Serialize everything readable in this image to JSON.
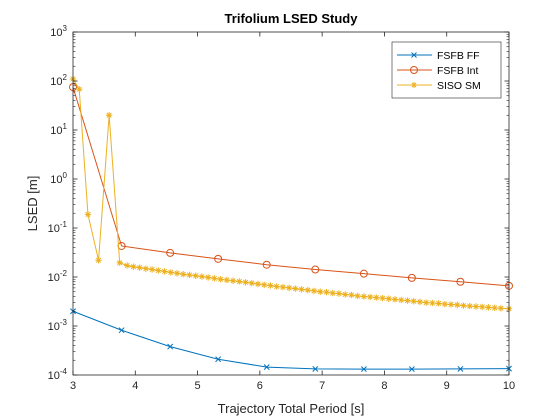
{
  "chart_data": {
    "type": "line",
    "title": "Trifolium LSED Study",
    "xlabel": "Trajectory Total Period [s]",
    "ylabel": "LSED [m]",
    "xlim": [
      3,
      10
    ],
    "ylim": [
      0.0001,
      1000
    ],
    "yscale": "log",
    "xticks": [
      3,
      4,
      5,
      6,
      7,
      8,
      9,
      10
    ],
    "yticks": [
      {
        "value": 0.0001,
        "base": "10",
        "exp": "-4"
      },
      {
        "value": 0.001,
        "base": "10",
        "exp": "-3"
      },
      {
        "value": 0.01,
        "base": "10",
        "exp": "-2"
      },
      {
        "value": 0.1,
        "base": "10",
        "exp": "-1"
      },
      {
        "value": 1,
        "base": "10",
        "exp": "0"
      },
      {
        "value": 10,
        "base": "10",
        "exp": "1"
      },
      {
        "value": 100,
        "base": "10",
        "exp": "2"
      },
      {
        "value": 1000,
        "base": "10",
        "exp": "3"
      }
    ],
    "grid": false,
    "legend_position": "top-right",
    "series": [
      {
        "name": "FSFB FF",
        "color": "#0072BD",
        "marker": "x",
        "x": [
          3.0,
          3.78,
          4.56,
          5.33,
          6.11,
          6.89,
          7.67,
          8.44,
          9.22,
          10.0
        ],
        "y": [
          0.002,
          0.00082,
          0.00038,
          0.00021,
          0.000145,
          0.000133,
          0.000132,
          0.000132,
          0.000133,
          0.000135
        ]
      },
      {
        "name": "FSFB Int",
        "color": "#D95319",
        "marker": "o",
        "x": [
          3.0,
          3.78,
          4.56,
          5.33,
          6.11,
          6.89,
          7.67,
          8.44,
          9.22,
          10.0
        ],
        "y": [
          75,
          0.043,
          0.031,
          0.0235,
          0.0178,
          0.0142,
          0.0117,
          0.0096,
          0.008,
          0.0066
        ]
      },
      {
        "name": "SISO SM",
        "color": "#EDB120",
        "marker": "*",
        "x": [
          3.0,
          3.1,
          3.24,
          3.41,
          3.58,
          3.75,
          3.87,
          3.97,
          4.07,
          4.17,
          4.27,
          4.37,
          4.47,
          4.57,
          4.67,
          4.77,
          4.87,
          4.97,
          5.07,
          5.17,
          5.27,
          5.37,
          5.47,
          5.57,
          5.67,
          5.77,
          5.87,
          5.97,
          6.07,
          6.17,
          6.27,
          6.37,
          6.47,
          6.57,
          6.67,
          6.77,
          6.87,
          6.97,
          7.07,
          7.17,
          7.27,
          7.37,
          7.47,
          7.57,
          7.67,
          7.77,
          7.87,
          7.97,
          8.07,
          8.17,
          8.27,
          8.37,
          8.47,
          8.57,
          8.67,
          8.77,
          8.87,
          8.97,
          9.07,
          9.17,
          9.27,
          9.37,
          9.47,
          9.57,
          9.67,
          9.77,
          9.87,
          10.0
        ],
        "y": [
          110,
          68,
          0.19,
          0.022,
          20,
          0.0195,
          0.0172,
          0.0162,
          0.0155,
          0.0148,
          0.0142,
          0.0136,
          0.013,
          0.0124,
          0.0119,
          0.0114,
          0.011,
          0.0106,
          0.0102,
          0.0098,
          0.0094,
          0.009,
          0.0087,
          0.0084,
          0.0081,
          0.0078,
          0.0075,
          0.0072,
          0.0069,
          0.0067,
          0.0064,
          0.0062,
          0.006,
          0.0058,
          0.0056,
          0.0054,
          0.0052,
          0.005,
          0.0049,
          0.0047,
          0.0046,
          0.0044,
          0.0043,
          0.0041,
          0.004,
          0.0039,
          0.0038,
          0.0037,
          0.0036,
          0.0035,
          0.0034,
          0.0033,
          0.0032,
          0.0031,
          0.003,
          0.00295,
          0.0029,
          0.0028,
          0.00275,
          0.0027,
          0.0026,
          0.00255,
          0.0025,
          0.00245,
          0.0024,
          0.00235,
          0.0023,
          0.00225
        ]
      }
    ]
  }
}
